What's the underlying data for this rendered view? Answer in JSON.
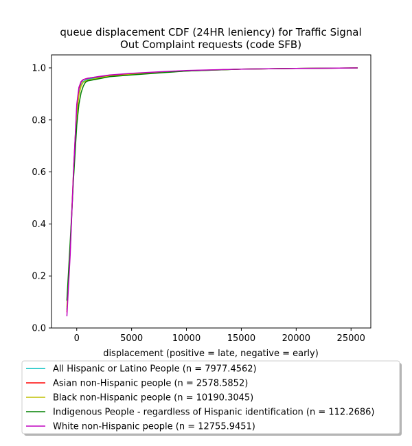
{
  "chart_data": {
    "type": "line",
    "title_lines": [
      "queue displacement CDF (24HR leniency) for Traffic Signal",
      "Out Complaint  requests (code SFB)"
    ],
    "xlabel": "displacement (positive = late, negative = early)",
    "ylabel": "",
    "xlim": [
      -2300,
      26800
    ],
    "ylim": [
      0.0,
      1.05
    ],
    "x_ticks": [
      0,
      5000,
      10000,
      15000,
      20000,
      25000
    ],
    "y_ticks": [
      0.0,
      0.2,
      0.4,
      0.6,
      0.8,
      1.0
    ],
    "x_tick_labels": [
      "0",
      "5000",
      "10000",
      "15000",
      "20000",
      "25000"
    ],
    "y_tick_labels": [
      "0.0",
      "0.2",
      "0.4",
      "0.6",
      "0.8",
      "1.0"
    ],
    "grid": false,
    "legend_position": "below plot",
    "series": [
      {
        "name": "All Hispanic or Latino People (n = 7977.4562)",
        "color": "#00bfbf",
        "x": [
          -900,
          -600,
          -300,
          0,
          200,
          400,
          600,
          1000,
          2000,
          3000,
          5000,
          8000,
          10000,
          15000,
          20000,
          25600
        ],
        "y": [
          0.07,
          0.3,
          0.58,
          0.83,
          0.9,
          0.935,
          0.948,
          0.956,
          0.963,
          0.97,
          0.976,
          0.984,
          0.988,
          0.995,
          0.998,
          1.0
        ]
      },
      {
        "name": "Asian non-Hispanic people (n = 2578.5852)",
        "color": "#ff0000",
        "x": [
          -900,
          -600,
          -300,
          0,
          200,
          400,
          600,
          1000,
          2000,
          3000,
          5000,
          8000,
          10000,
          15000,
          20000,
          25600
        ],
        "y": [
          0.06,
          0.3,
          0.6,
          0.85,
          0.92,
          0.945,
          0.955,
          0.96,
          0.966,
          0.972,
          0.978,
          0.985,
          0.989,
          0.995,
          0.998,
          1.0
        ]
      },
      {
        "name": "Black non-Hispanic people (n = 10190.3045)",
        "color": "#bfbf00",
        "x": [
          -900,
          -600,
          -300,
          0,
          200,
          400,
          600,
          1000,
          2000,
          3000,
          5000,
          8000,
          10000,
          15000,
          20000,
          25600
        ],
        "y": [
          0.08,
          0.31,
          0.58,
          0.82,
          0.895,
          0.93,
          0.945,
          0.953,
          0.961,
          0.968,
          0.975,
          0.983,
          0.988,
          0.995,
          0.998,
          1.0
        ]
      },
      {
        "name": "Indigenous People - regardless of Hispanic identification (n = 112.2686)",
        "color": "#008000",
        "x": [
          -900,
          -600,
          -300,
          0,
          200,
          400,
          600,
          800,
          1000,
          2000,
          3000,
          5000,
          8000,
          10000,
          15000,
          20000,
          25600
        ],
        "y": [
          0.105,
          0.33,
          0.57,
          0.78,
          0.86,
          0.905,
          0.93,
          0.945,
          0.95,
          0.958,
          0.966,
          0.973,
          0.982,
          0.988,
          0.995,
          0.998,
          1.0
        ]
      },
      {
        "name": "White non-Hispanic people (n = 12755.9451)",
        "color": "#bf00bf",
        "x": [
          -900,
          -600,
          -300,
          0,
          200,
          400,
          600,
          1000,
          2000,
          3000,
          5000,
          8000,
          10000,
          15000,
          20000,
          25600
        ],
        "y": [
          0.045,
          0.28,
          0.6,
          0.86,
          0.925,
          0.948,
          0.955,
          0.96,
          0.967,
          0.973,
          0.979,
          0.986,
          0.99,
          0.995,
          0.998,
          1.0
        ]
      }
    ]
  }
}
